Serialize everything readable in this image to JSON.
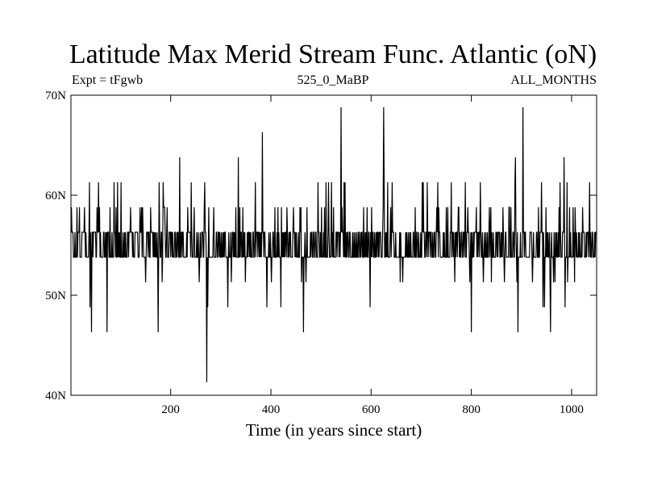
{
  "chart_data": {
    "type": "line",
    "title": "Latitude Max Merid Stream Func. Atlantic (oN)",
    "subtitle_left": "Expt = tFgwb",
    "subtitle_center": "525_0_MaBP",
    "subtitle_right": "ALL_MONTHS",
    "xlabel": "Time (in years since start)",
    "ylabel": "",
    "xlim": [
      1,
      1050
    ],
    "ylim": [
      40,
      70
    ],
    "x_ticks": [
      200,
      400,
      600,
      800,
      1000
    ],
    "x_tick_labels": [
      "200",
      "400",
      "600",
      "800",
      "1000"
    ],
    "y_ticks": [
      40,
      50,
      60,
      70
    ],
    "y_tick_labels": [
      "40N",
      "50N",
      "60N",
      "70N"
    ],
    "grid": false,
    "color": "#000000",
    "levels": [
      41.3,
      46.3,
      48.8,
      51.3,
      53.8,
      56.3,
      58.8,
      61.3,
      63.8,
      66.3,
      68.8
    ],
    "dominant_levels": [
      53.8,
      56.3
    ],
    "upper_spikes": [
      {
        "x": 218,
        "y": 63.8
      },
      {
        "x": 335,
        "y": 63.8
      },
      {
        "x": 383,
        "y": 66.3
      },
      {
        "x": 540,
        "y": 68.8
      },
      {
        "x": 625,
        "y": 68.8
      },
      {
        "x": 888,
        "y": 63.8
      },
      {
        "x": 903,
        "y": 68.8
      },
      {
        "x": 985,
        "y": 63.8
      }
    ],
    "lower_spikes": [
      {
        "x": 42,
        "y": 46.3
      },
      {
        "x": 73,
        "y": 46.3
      },
      {
        "x": 175,
        "y": 46.3
      },
      {
        "x": 272,
        "y": 41.3
      },
      {
        "x": 465,
        "y": 46.3
      },
      {
        "x": 800,
        "y": 46.3
      },
      {
        "x": 893,
        "y": 46.3
      },
      {
        "x": 958,
        "y": 46.3
      }
    ]
  }
}
